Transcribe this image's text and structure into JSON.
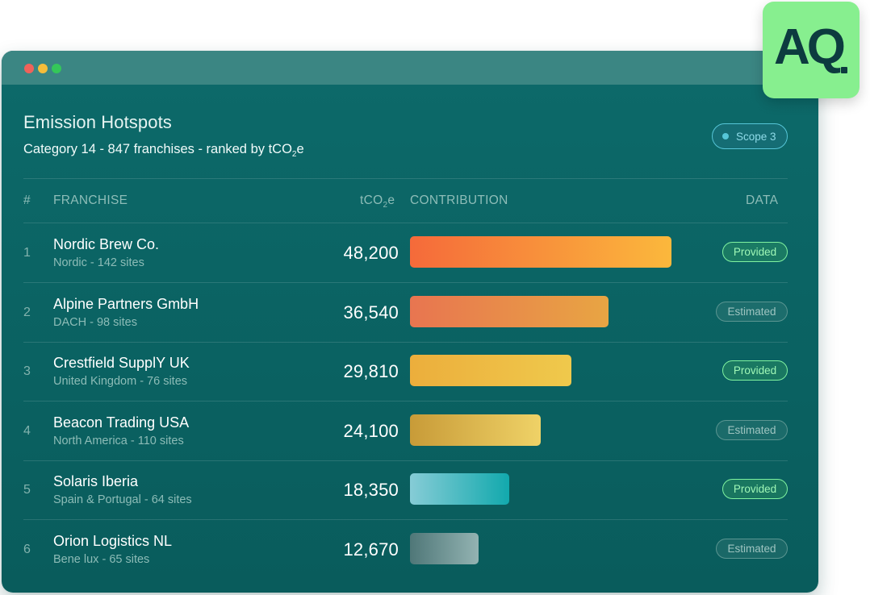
{
  "window": {
    "title": "Emission Hotspots",
    "subtitle_prefix": "Category 14 - 847 franchises - ranked by tCO",
    "subtitle_sub": "2",
    "subtitle_suffix": "e",
    "scope_label": "Scope 3"
  },
  "table": {
    "headers": {
      "rank": "#",
      "franchise": "FRANCHISE",
      "unit_prefix": "tCO",
      "unit_sub": "2",
      "unit_suffix": "e",
      "contribution": "CONTRIBUTION",
      "data": "DATA"
    },
    "max_value": 48200,
    "rows": [
      {
        "rank": "1",
        "name": "Nordic Brew Co.",
        "meta": "Nordic - 142 sites",
        "value": "48,200",
        "amount": 48200,
        "status": "Provided",
        "status_type": "provided",
        "colors": [
          "#f56a3a",
          "#fbb83c"
        ]
      },
      {
        "rank": "2",
        "name": "Alpine Partners GmbH",
        "meta": "DACH - 98 sites",
        "value": "36,540",
        "amount": 36540,
        "status": "Estimated",
        "status_type": "estimated",
        "colors": [
          "#e87550",
          "#e8a543"
        ]
      },
      {
        "rank": "3",
        "name": "Crestfield SupplY UK",
        "meta": "United Kingdom - 76 sites",
        "value": "29,810",
        "amount": 29810,
        "status": "Provided",
        "status_type": "provided",
        "colors": [
          "#ecae3c",
          "#efc94c"
        ]
      },
      {
        "rank": "4",
        "name": "Beacon Trading USA",
        "meta": "North America - 110 sites",
        "value": "24,100",
        "amount": 24100,
        "status": "Estimated",
        "status_type": "estimated",
        "colors": [
          "#c89b38",
          "#efd267"
        ]
      },
      {
        "rank": "5",
        "name": "Solaris Iberia",
        "meta": "Spain & Portugal - 64 sites",
        "value": "18,350",
        "amount": 18350,
        "status": "Provided",
        "status_type": "provided",
        "colors": [
          "#86ccd6",
          "#12a9ad"
        ]
      },
      {
        "rank": "6",
        "name": "Orion Logistics NL",
        "meta": "Bene lux - 65 sites",
        "value": "12,670",
        "amount": 12670,
        "status": "Estimated",
        "status_type": "estimated",
        "colors": [
          "#4f7778",
          "#93b3b2"
        ]
      }
    ]
  },
  "logo": {
    "text": "AQ",
    "color": "#87ef8f"
  }
}
